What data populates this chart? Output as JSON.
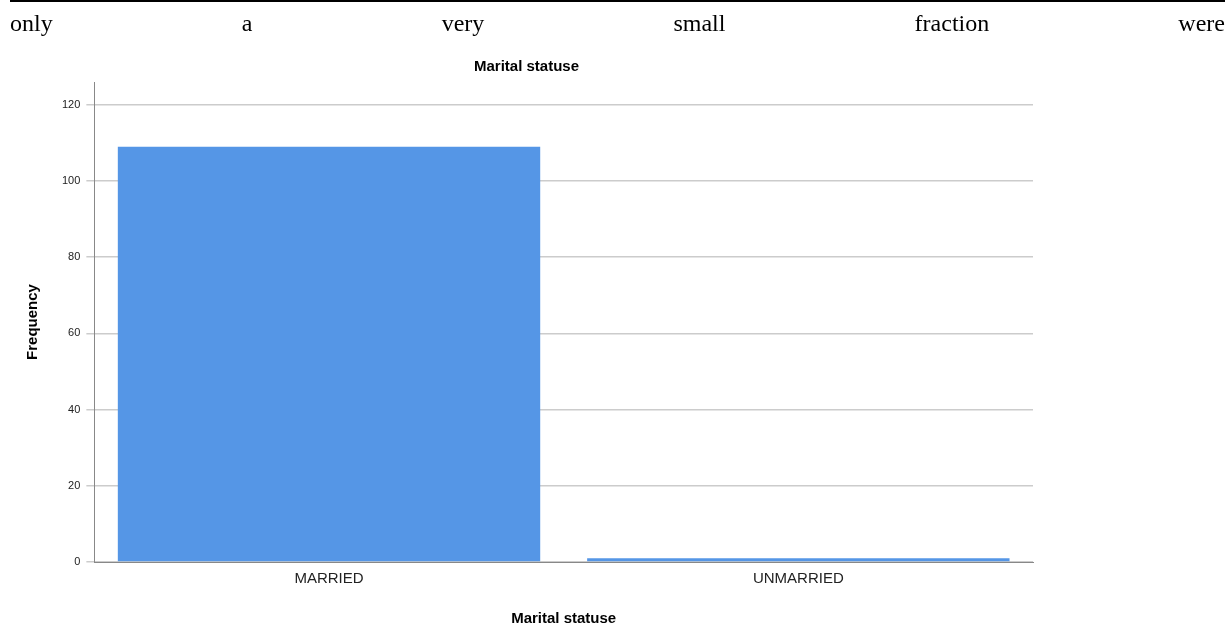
{
  "chart_data": {
    "type": "bar",
    "title": "Marital statuse",
    "xlabel": "Marital statuse",
    "ylabel": "Frequency",
    "categories": [
      "MARRIED",
      "UNMARRIED"
    ],
    "values": [
      109,
      1
    ],
    "color": "#5596e6",
    "ylim": [
      0,
      126
    ],
    "yticks": [
      0,
      20,
      40,
      60,
      80,
      100,
      120
    ],
    "grid": "y",
    "annotations": [
      "only a very small fraction were"
    ]
  }
}
